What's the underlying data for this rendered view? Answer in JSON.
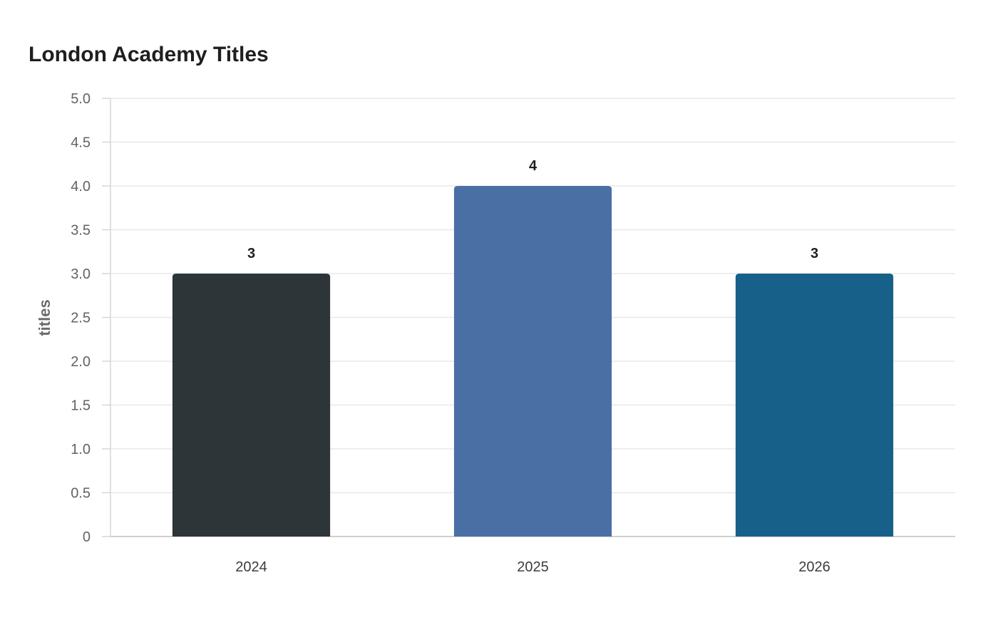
{
  "chart_data": {
    "type": "bar",
    "title": "London Academy Titles",
    "xlabel": "",
    "ylabel": "titles",
    "categories": [
      "2024",
      "2025",
      "2026"
    ],
    "values": [
      3,
      4,
      3
    ],
    "colors": [
      "#2e3538",
      "#4a6fa5",
      "#176089"
    ],
    "ylim": [
      0,
      5
    ],
    "yticks": [
      0,
      0.5,
      1,
      1.5,
      2,
      2.5,
      3,
      3.5,
      4,
      4.5,
      5
    ],
    "ytick_labels": [
      "0",
      "0.5",
      "1.0",
      "1.5",
      "2.0",
      "2.5",
      "3.0",
      "3.5",
      "4.0",
      "4.5",
      "5.0"
    ],
    "grid": true,
    "legend": "none"
  }
}
